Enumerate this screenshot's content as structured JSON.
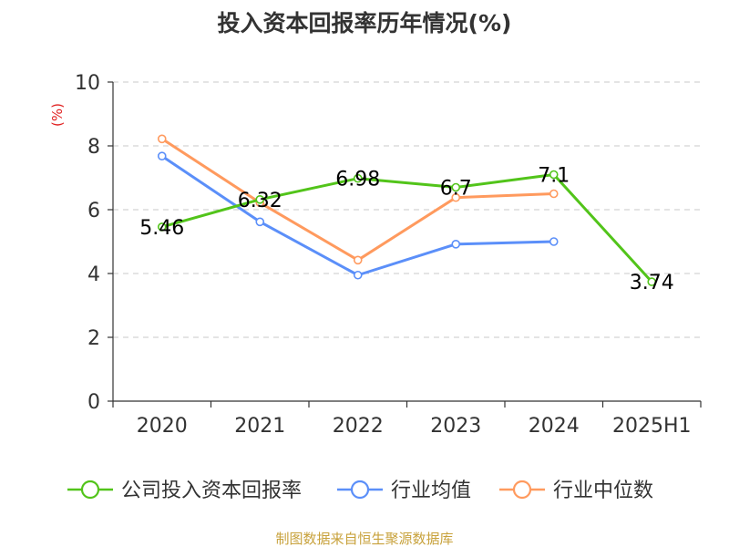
{
  "chart_data": {
    "type": "line",
    "title": "投入资本回报率历年情况(%)",
    "ylabel": "(%)",
    "xlabel": "",
    "categories": [
      "2020",
      "2021",
      "2022",
      "2023",
      "2024",
      "2025H1"
    ],
    "ylim": [
      0,
      10
    ],
    "yticks": [
      0,
      2,
      4,
      6,
      8,
      10
    ],
    "grid": true,
    "legend_position": "bottom",
    "series": [
      {
        "name": "公司投入资本回报率",
        "color": "#52c41a",
        "values": [
          5.46,
          6.32,
          6.98,
          6.7,
          7.1,
          3.74
        ],
        "show_labels": true
      },
      {
        "name": "行业均值",
        "color": "#5b8ff9",
        "values": [
          7.68,
          5.62,
          3.95,
          4.92,
          5.0,
          null
        ],
        "show_labels": false
      },
      {
        "name": "行业中位数",
        "color": "#ff9a5e",
        "values": [
          8.22,
          6.22,
          4.42,
          6.38,
          6.5,
          null
        ],
        "show_labels": false
      }
    ],
    "source": "制图数据来自恒生聚源数据库",
    "source_color": "#c8a23c",
    "ylabel_color": "#e02020"
  }
}
